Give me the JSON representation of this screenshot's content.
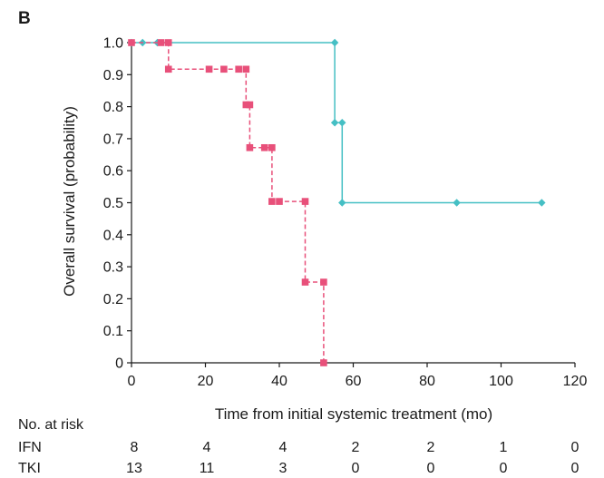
{
  "panel_label": "B",
  "chart_data": {
    "type": "line",
    "xlabel": "Time from initial systemic treatment (mo)",
    "ylabel": "Overall survival (probability)",
    "xlim": [
      0,
      120
    ],
    "ylim": [
      0,
      1.0
    ],
    "x_ticks": [
      "0",
      "20",
      "40",
      "60",
      "80",
      "100",
      "120"
    ],
    "y_ticks": [
      "0",
      "0.1",
      "0.2",
      "0.3",
      "0.4",
      "0.5",
      "0.6",
      "0.7",
      "0.8",
      "0.9",
      "1.0"
    ],
    "grid": false,
    "legend": "none",
    "series": [
      {
        "color": "#45bfc4",
        "line_style": "solid",
        "marker": "diamond",
        "steps": [
          [
            0,
            1.0
          ],
          [
            55,
            1.0
          ],
          [
            55,
            0.75
          ],
          [
            57,
            0.75
          ],
          [
            57,
            0.5
          ],
          [
            111,
            0.5
          ]
        ],
        "markers": [
          [
            0,
            1.0
          ],
          [
            3,
            1.0
          ],
          [
            7,
            1.0
          ],
          [
            55,
            1.0
          ],
          [
            55,
            0.75
          ],
          [
            57,
            0.75
          ],
          [
            57,
            0.5
          ],
          [
            88,
            0.5
          ],
          [
            111,
            0.5
          ]
        ]
      },
      {
        "color": "#e8507a",
        "line_style": "dashed",
        "marker": "square",
        "steps": [
          [
            0,
            1.0
          ],
          [
            10,
            1.0
          ],
          [
            10,
            0.917
          ],
          [
            31,
            0.917
          ],
          [
            31,
            0.806
          ],
          [
            32,
            0.806
          ],
          [
            32,
            0.672
          ],
          [
            38,
            0.672
          ],
          [
            38,
            0.504
          ],
          [
            47,
            0.504
          ],
          [
            47,
            0.252
          ],
          [
            52,
            0.252
          ],
          [
            52,
            0
          ]
        ],
        "markers": [
          [
            0,
            1.0
          ],
          [
            8,
            1.0
          ],
          [
            10,
            1.0
          ],
          [
            10,
            0.917
          ],
          [
            21,
            0.917
          ],
          [
            25,
            0.917
          ],
          [
            29,
            0.917
          ],
          [
            31,
            0.917
          ],
          [
            31,
            0.806
          ],
          [
            32,
            0.806
          ],
          [
            32,
            0.672
          ],
          [
            36,
            0.672
          ],
          [
            38,
            0.672
          ],
          [
            38,
            0.504
          ],
          [
            40,
            0.504
          ],
          [
            47,
            0.504
          ],
          [
            47,
            0.252
          ],
          [
            52,
            0.252
          ],
          [
            52,
            0
          ]
        ]
      }
    ]
  },
  "risk_table": {
    "title": "No. at risk",
    "rows": [
      {
        "label": "IFN",
        "values": [
          "8",
          "4",
          "4",
          "2",
          "2",
          "1",
          "0"
        ]
      },
      {
        "label": "TKI",
        "values": [
          "13",
          "11",
          "3",
          "0",
          "0",
          "0",
          "0"
        ]
      }
    ]
  }
}
